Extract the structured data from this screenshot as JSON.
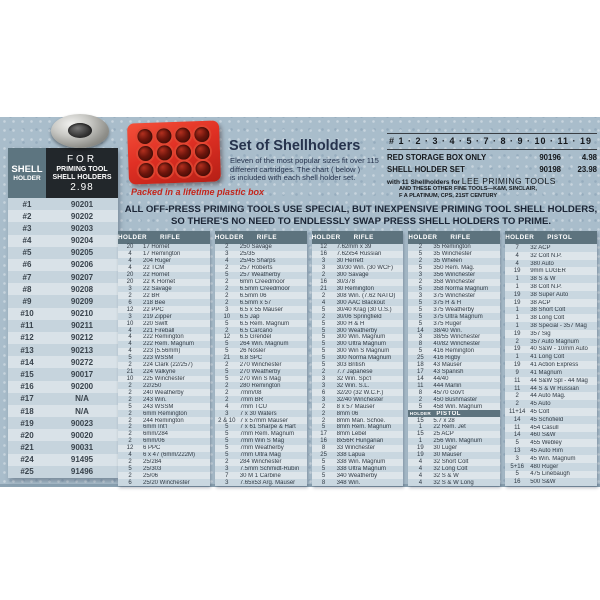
{
  "colors": {
    "band_blue": "#a9bdcb",
    "header_slate": "#5d737e",
    "black_panel": "#22272b",
    "accent_red": "#e03024",
    "navy_text": "#26334d",
    "row_dark": "#c9d7e0",
    "row_light": "#dde5ea"
  },
  "sidebar": {
    "col1_title_line1": "SHELL",
    "col1_title_line2": "HOLDER",
    "col2_for": "FOR",
    "col2_line1": "PRIMING TOOL",
    "col2_line2": "SHELL HOLDERS",
    "col2_price": "2.98",
    "rows": [
      [
        "#1",
        "90201"
      ],
      [
        "#2",
        "90202"
      ],
      [
        "#3",
        "90203"
      ],
      [
        "#4",
        "90204"
      ],
      [
        "#5",
        "90205"
      ],
      [
        "#6",
        "90206"
      ],
      [
        "#7",
        "90207"
      ],
      [
        "#8",
        "90208"
      ],
      [
        "#9",
        "90209"
      ],
      [
        "#10",
        "90210"
      ],
      [
        "#11",
        "90211"
      ],
      [
        "#12",
        "90212"
      ],
      [
        "#13",
        "90213"
      ],
      [
        "#14",
        "90272"
      ],
      [
        "#15",
        "90017"
      ],
      [
        "#16",
        "90200"
      ],
      [
        "#17",
        "N/A"
      ],
      [
        "#18",
        "N/A"
      ],
      [
        "#19",
        "90023"
      ],
      [
        "#20",
        "90020"
      ],
      [
        "#21",
        "90031"
      ],
      [
        "#24",
        "91495"
      ],
      [
        "#25",
        "91496"
      ]
    ]
  },
  "set_section": {
    "title": "Set of Shellholders",
    "desc_line1": "Eleven of the most popular sizes fit over 115",
    "desc_line2": "different cartridges. The chart ( below )",
    "desc_line3": "is included with each shell holder set.",
    "caption": "Packed in a lifetime plastic box",
    "box_cavities": 12
  },
  "pricing": {
    "numbers_line": "# 1 · 2 · 3 · 4 · 5 · 7 · 8 · 9 · 10 · 11 · 19",
    "items": [
      {
        "label": "RED STORAGE BOX ONLY",
        "sku": "90196",
        "price": "4.98"
      },
      {
        "label": "SHELL HOLDER SET",
        "sku": "90198",
        "price": "23.98"
      }
    ],
    "note_small": "with 11 Shellholders for ",
    "note_large": "LEE PRIMING TOOLS",
    "note_line2": "AND THESE OTHER FINE TOOLS—K&M, SINCLAIR,",
    "note_line3": "F A PLATINUM, CPS, 21ST CENTURY"
  },
  "banner": {
    "line1": "ALL OFF-PRESS PRIMING TOOLS USE SPECIAL, BUT INEXPENSIVE PRIMING TOOL SHELL HOLDERS,",
    "line2": "SO THERE'S NO NEED TO ENDLESSLY SWAP PRESS SHELL HOLDERS TO PRIME."
  },
  "compatibility_table": {
    "columns": [
      {
        "holder_header": "HOLDER",
        "type_header": "RIFLE",
        "rows": [
          [
            "20",
            "17 Hornet"
          ],
          [
            "4",
            "17 Remington"
          ],
          [
            "4",
            "204 Ruger"
          ],
          [
            "4",
            "22 TCM"
          ],
          [
            "20",
            "22 Hornet"
          ],
          [
            "20",
            "22 K Hornet"
          ],
          [
            "3",
            "22 Savage"
          ],
          [
            "2",
            "22 BR"
          ],
          [
            "6",
            "218 Bee"
          ],
          [
            "12",
            "22 PPC"
          ],
          [
            "3",
            "219 Zipper"
          ],
          [
            "10",
            "220 Swift"
          ],
          [
            "4",
            "221 Fireball"
          ],
          [
            "4",
            "222 Remington"
          ],
          [
            "4",
            "222 Rem. Magnum"
          ],
          [
            "4",
            "223 (5.56mm)"
          ],
          [
            "5",
            "223 WSSM"
          ],
          [
            "2",
            "224 Clark (22/257)"
          ],
          [
            "21",
            "224 Valkyrie"
          ],
          [
            "10",
            "225 Winchester"
          ],
          [
            "2",
            "22/250"
          ],
          [
            "2",
            "240 Weatherby"
          ],
          [
            "2",
            "243 Win."
          ],
          [
            "5",
            "243 WSSM"
          ],
          [
            "2",
            "6mm Remington"
          ],
          [
            "2",
            "244 Remington"
          ],
          [
            "2",
            "6mm Int'l"
          ],
          [
            "2",
            "6mm/284"
          ],
          [
            "2",
            "6mm/06"
          ],
          [
            "12",
            "6 PPC"
          ],
          [
            "4",
            "6 x 47 (6mm/222M)"
          ],
          [
            "2",
            "25/284"
          ],
          [
            "5",
            "25/303"
          ],
          [
            "2",
            "25/06"
          ],
          [
            "6",
            "25/20 Winchester"
          ]
        ]
      },
      {
        "holder_header": "HOLDER",
        "type_header": "RIFLE",
        "rows": [
          [
            "2",
            "250 Savage"
          ],
          [
            "3",
            "25/35"
          ],
          [
            "4",
            "25/45 Sharps"
          ],
          [
            "2",
            "257 Roberts"
          ],
          [
            "5",
            "257 Weatherby"
          ],
          [
            "2",
            "6mm Creedmoor"
          ],
          [
            "2",
            "6.5mm Creedmoor"
          ],
          [
            "2",
            "6.5mm 06"
          ],
          [
            "2",
            "6.5mm x 57"
          ],
          [
            "3",
            "6.5 x 55 Mauser"
          ],
          [
            "10",
            "6.5 Jap"
          ],
          [
            "5",
            "6.5 Rem. Magnum"
          ],
          [
            "2",
            "6.5 Carcano"
          ],
          [
            "12",
            "6.5 Grendel"
          ],
          [
            "5",
            "264 Win. Magnum"
          ],
          [
            "5",
            "26 Nosler"
          ],
          [
            "21",
            "6.8 SPC"
          ],
          [
            "2",
            "270 Winchester"
          ],
          [
            "5",
            "270 Weatherby"
          ],
          [
            "5",
            "270 Win S Mag"
          ],
          [
            "2",
            "280 Remington"
          ],
          [
            "2",
            "7mm/08"
          ],
          [
            "2",
            "7mm BR"
          ],
          [
            "4",
            "7mm TCU"
          ],
          [
            "3",
            "7 x 30 Waters"
          ],
          [
            "2 & 10",
            "7 x 57mm Mauser"
          ],
          [
            "5",
            "7 x 61 Sharpe & Hart"
          ],
          [
            "5",
            "7mm Rem. Magnum"
          ],
          [
            "5",
            "7mm Win S Mag"
          ],
          [
            "5",
            "7mm Weatherby"
          ],
          [
            "5",
            "7mm Ultra Mag"
          ],
          [
            "2",
            "284 Winchester"
          ],
          [
            "3",
            "7.5mm Schmidt-Rubin"
          ],
          [
            "7",
            "30 M 1 Carbine"
          ],
          [
            "3",
            "7.65x53 Arg. Mauser"
          ]
        ]
      },
      {
        "holder_header": "HOLDER",
        "type_header": "RIFLE",
        "rows": [
          [
            "12",
            "7.62mm x 39"
          ],
          [
            "16",
            "7.62x54 Russian"
          ],
          [
            "3",
            "30 Herrett"
          ],
          [
            "3",
            "30/30 Win. (30 WCF)"
          ],
          [
            "2",
            "300 Savage"
          ],
          [
            "16",
            "30/378"
          ],
          [
            "21",
            "30 Remington"
          ],
          [
            "2",
            "308 Win. (7.62 NATO)"
          ],
          [
            "4",
            "300 AAC Blackout"
          ],
          [
            "5",
            "30/40 Krag (30 U.S.)"
          ],
          [
            "2",
            "30/06 Springfield"
          ],
          [
            "5",
            "300 H & H"
          ],
          [
            "5",
            "300 Weatherby"
          ],
          [
            "5",
            "300 Win. Magnum"
          ],
          [
            "5",
            "300 Ultra Magnum"
          ],
          [
            "5",
            "300 Win S Magnum"
          ],
          [
            "5",
            "300 Norma Magnum"
          ],
          [
            "5",
            "303 British"
          ],
          [
            "2",
            "7.7 Japanese"
          ],
          [
            "3",
            "32 Win. Spc'l"
          ],
          [
            "3",
            "32 Win. S.L."
          ],
          [
            "6",
            "32/20 (32 W.C.F.)"
          ],
          [
            "3",
            "32/40 Winchester"
          ],
          [
            "2",
            "8 x 57 Mauser"
          ],
          [
            "2",
            "8mm 06"
          ],
          [
            "2",
            "8mm Man. Schoe."
          ],
          [
            "5",
            "8mm Rem. Magnum"
          ],
          [
            "17",
            "8mm Lebel"
          ],
          [
            "16",
            "8x56R Hungarian"
          ],
          [
            "8",
            "33 Winchester"
          ],
          [
            "25",
            "338 Lapua"
          ],
          [
            "5",
            "338 Win. Magnum"
          ],
          [
            "5",
            "338 Ultra Magnum"
          ],
          [
            "5",
            "340 Weatherby"
          ],
          [
            "8",
            "348 Win."
          ]
        ]
      },
      {
        "holder_header": "HOLDER",
        "type_header": "RIFLE",
        "rows": [
          [
            "2",
            "35 Remington"
          ],
          [
            "5",
            "35 Winchester"
          ],
          [
            "2",
            "35 Whelen"
          ],
          [
            "5",
            "350 Rem. Mag."
          ],
          [
            "3",
            "356 Winchester"
          ],
          [
            "2",
            "358 Winchester"
          ],
          [
            "5",
            "358 Norma Magnum"
          ],
          [
            "3",
            "375 Winchester"
          ],
          [
            "5",
            "375 H & H"
          ],
          [
            "5",
            "375 Weatherby"
          ],
          [
            "5",
            "375 Ultra Magnum"
          ],
          [
            "5",
            "375 Ruger"
          ],
          [
            "14",
            "38/40 Win."
          ],
          [
            "3",
            "38/55 Winchester"
          ],
          [
            "8",
            "40/82 Winchester"
          ],
          [
            "5",
            "416 Remington"
          ],
          [
            "25",
            "416 Rigby"
          ],
          [
            "18",
            "43 Mauser"
          ],
          [
            "17",
            "43 Spanish"
          ],
          [
            "14",
            "44/40"
          ],
          [
            "11",
            "444 Marlin"
          ],
          [
            "8",
            "45/70 Gov't"
          ],
          [
            "2",
            "450 Bushmaster"
          ],
          [
            "5",
            "458 Win. Magnum"
          ],
          [
            "HOLDER",
            "PISTOL",
            "subheader"
          ],
          [
            "15",
            "5.7 x 28"
          ],
          [
            "1",
            "22 Rem. Jet"
          ],
          [
            "15",
            "25 ACP"
          ],
          [
            "1",
            "256 Win. Magnum"
          ],
          [
            "19",
            "30 Luger"
          ],
          [
            "19",
            "30 Mauser"
          ],
          [
            "4",
            "32 Short Colt"
          ],
          [
            "4",
            "32 Long Colt"
          ],
          [
            "4",
            "32 S & W"
          ],
          [
            "4",
            "32 S & W Long"
          ]
        ]
      },
      {
        "holder_header": "HOLDER",
        "type_header": "PISTOL",
        "rows": [
          [
            "7",
            "32 ACP"
          ],
          [
            "4",
            "32 Colt N.P."
          ],
          [
            "4",
            "380 Auto"
          ],
          [
            "19",
            "9mm LUGER"
          ],
          [
            "1",
            "38 S & W"
          ],
          [
            "1",
            "38 Colt N.P."
          ],
          [
            "19",
            "38 Super Auto"
          ],
          [
            "19",
            "38 ACP"
          ],
          [
            "1",
            "38 Short Colt"
          ],
          [
            "1",
            "38 Long Colt"
          ],
          [
            "1",
            "38 Special - 357 Mag"
          ],
          [
            "19",
            "357 Sig"
          ],
          [
            "2",
            "357 Auto Magnum"
          ],
          [
            "19",
            "40 S&W - 10mm Auto"
          ],
          [
            "1",
            "41 Long Colt"
          ],
          [
            "19",
            "41 Action Express"
          ],
          [
            "9",
            "41 Magnum"
          ],
          [
            "11",
            "44 S&W Spl - 44 Mag"
          ],
          [
            "11",
            "44 S & W Russian"
          ],
          [
            "2",
            "44 Auto Mag."
          ],
          [
            "2",
            "45 Auto"
          ],
          [
            "11+14",
            "45 Colt"
          ],
          [
            "14",
            "45 Schofield"
          ],
          [
            "11",
            "454 Casull"
          ],
          [
            "14",
            "460 S&W"
          ],
          [
            "5",
            "455 Webley"
          ],
          [
            "13",
            "45 Auto Rim"
          ],
          [
            "3",
            "45 Win. Magnum"
          ],
          [
            "5+16",
            "480 Ruger"
          ],
          [
            "5",
            "475 Linebaugh"
          ],
          [
            "16",
            "500 S&W"
          ]
        ]
      }
    ]
  }
}
